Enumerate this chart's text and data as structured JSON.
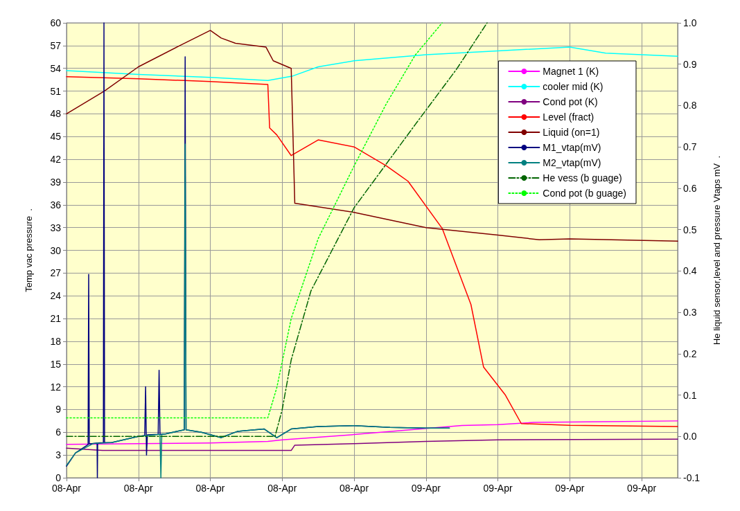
{
  "chart_data": {
    "type": "line",
    "ylabel": "Temp vac pressure  .",
    "y2label": "He liquid sensor,level and pressure Vtaps mV  .",
    "xlim": [
      "--04-08T04:00",
      "--04-09T14:00"
    ],
    "xticks": [
      {
        "value": "--04-08T04:00",
        "label": "08-Apr"
      },
      {
        "value": "--04-08T08:00",
        "label": "08-Apr"
      },
      {
        "value": "--04-08T12:00",
        "label": "08-Apr"
      },
      {
        "value": "--04-08T16:00",
        "label": "08-Apr"
      },
      {
        "value": "--04-08T20:00",
        "label": "08-Apr"
      },
      {
        "value": "--04-09T00:00",
        "label": "09-Apr"
      },
      {
        "value": "--04-09T04:00",
        "label": "09-Apr"
      },
      {
        "value": "--04-09T08:00",
        "label": "09-Apr"
      },
      {
        "value": "--04-09T12:00",
        "label": "09-Apr"
      }
    ],
    "ylim": [
      0,
      60
    ],
    "yticks": [
      0,
      3,
      6,
      9,
      12,
      15,
      18,
      21,
      24,
      27,
      30,
      33,
      36,
      39,
      42,
      45,
      48,
      51,
      54,
      57,
      60
    ],
    "y2lim": [
      -0.1,
      1.0
    ],
    "y2ticks": [
      -0.1,
      {
        "value": 0,
        "label": "0.0"
      },
      0.1,
      0.2,
      0.3,
      0.4,
      0.5,
      0.6,
      0.7,
      0.8,
      0.9,
      {
        "value": 1,
        "label": "1.0"
      }
    ],
    "grid": true,
    "legend": "top right",
    "marker": "none",
    "series": [
      {
        "name": "Magnet 1 (K)",
        "color": "#ff00ff",
        "line_style": "solid",
        "x": [
          "--04-08T04:00",
          "--04-08T08:00",
          "--04-08T12:00",
          "--04-08T15:12",
          "--04-08T16:00",
          "--04-08T20:00",
          "--04-09T02:00",
          "--04-09T04:00",
          "--04-09T06:00",
          "--04-09T10:00",
          "--04-09T14:00"
        ],
        "values": [
          4.4,
          4.5,
          4.6,
          4.8,
          5.0,
          5.7,
          6.9,
          7.0,
          7.3,
          7.4,
          7.5
        ]
      },
      {
        "name": "cooler mid (K)",
        "color": "#00ffff",
        "line_style": "solid",
        "x": [
          "--04-08T04:00",
          "--04-08T08:00",
          "--04-08T12:00",
          "--04-08T15:12",
          "--04-08T16:36",
          "--04-08T18:00",
          "--04-08T20:00",
          "--04-09T00:00",
          "--04-09T04:00",
          "--04-09T08:00",
          "--04-09T10:00",
          "--04-09T14:00"
        ],
        "values": [
          53.7,
          53.2,
          52.8,
          52.4,
          53.0,
          54.2,
          55.0,
          55.8,
          56.3,
          56.8,
          56.0,
          55.6
        ]
      },
      {
        "name": "Cond pot (K)",
        "color": "#800080",
        "line_style": "solid",
        "x": [
          "--04-08T04:00",
          "--04-08T06:00",
          "--04-08T16:30",
          "--04-08T16:42",
          "--04-08T20:00",
          "--04-09T00:00",
          "--04-09T04:00",
          "--04-09T14:00"
        ],
        "values": [
          3.9,
          3.6,
          3.6,
          4.3,
          4.5,
          4.8,
          5.0,
          5.1
        ]
      },
      {
        "name": "Level (fract)",
        "color": "#ff0000",
        "line_style": "solid",
        "axis": "y2",
        "x": [
          "--04-08T04:00",
          "--04-08T08:00",
          "--04-08T12:00",
          "--04-08T15:12",
          "--04-08T15:18",
          "--04-08T15:42",
          "--04-08T16:30",
          "--04-08T18:00",
          "--04-08T20:00",
          "--04-08T21:48",
          "--04-08T23:00",
          "--04-09T00:54",
          "--04-09T02:30",
          "--04-09T03:12",
          "--04-09T04:24",
          "--04-09T05:18",
          "--04-09T08:00",
          "--04-09T14:00"
        ],
        "values": [
          0.87,
          0.865,
          0.858,
          0.851,
          0.746,
          0.729,
          0.679,
          0.717,
          0.7,
          0.654,
          0.617,
          0.503,
          0.319,
          0.168,
          0.101,
          0.031,
          0.027,
          0.024
        ]
      },
      {
        "name": "Liquid (on=1)",
        "color": "#800000",
        "line_style": "solid",
        "x": [
          "--04-08T04:00",
          "--04-08T06:06",
          "--04-08T08:00",
          "--04-08T10:18",
          "--04-08T12:00",
          "--04-08T12:36",
          "--04-08T13:24",
          "--04-08T15:06",
          "--04-08T15:30",
          "--04-08T16:30",
          "--04-08T16:42",
          "--04-08T20:00",
          "--04-09T00:00",
          "--04-09T04:00",
          "--04-09T06:18",
          "--04-09T08:00",
          "--04-09T14:00"
        ],
        "values": [
          48,
          51,
          54.2,
          57,
          59,
          58,
          57.3,
          56.8,
          55,
          54,
          36.2,
          35,
          33,
          32,
          31.4,
          31.5,
          31.2
        ]
      },
      {
        "name": "M1_vtap(mV)",
        "color": "#000080",
        "line_style": "solid",
        "axis": "y2",
        "x": [
          "--04-08T04:00",
          "--04-08T04:30",
          "--04-08T05:12",
          "--04-08T05:14",
          "--04-08T05:16",
          "--04-08T05:30",
          "--04-08T05:42",
          "--04-08T05:43",
          "--04-08T05:44",
          "--04-08T06:03",
          "--04-08T06:05",
          "--04-08T06:07",
          "--04-08T06:30",
          "--04-08T08:00",
          "--04-08T08:21",
          "--04-08T08:24",
          "--04-08T08:27",
          "--04-08T08:30",
          "--04-08T09:06",
          "--04-08T09:09",
          "--04-08T09:12",
          "--04-08T09:30",
          "--04-08T10:33",
          "--04-08T10:36",
          "--04-08T10:39",
          "--04-08T11:30",
          "--04-08T12:36",
          "--04-08T13:30",
          "--04-08T15:00",
          "--04-08T15:42",
          "--04-08T16:30",
          "--04-08T18:00",
          "--04-08T20:00",
          "--04-08T22:00",
          "--04-09T00:00",
          "--04-09T01:18"
        ],
        "values": [
          -0.072,
          -0.04,
          -0.02,
          0.392,
          -0.018,
          -0.017,
          -0.016,
          -0.1,
          -0.016,
          -0.015,
          1.0,
          -0.015,
          -0.015,
          0.0,
          0.002,
          0.12,
          -0.045,
          0.004,
          0.005,
          0.16,
          0.005,
          0.006,
          0.016,
          0.918,
          0.016,
          0.01,
          -0.003,
          0.012,
          0.018,
          -0.003,
          0.018,
          0.024,
          0.026,
          0.022,
          0.02,
          0.02
        ]
      },
      {
        "name": "M2_vtap(mV)",
        "color": "#008080",
        "line_style": "solid",
        "axis": "y2",
        "x": [
          "--04-08T04:00",
          "--04-08T04:30",
          "--04-08T05:30",
          "--04-08T06:30",
          "--04-08T08:00",
          "--04-08T09:12",
          "--04-08T09:15",
          "--04-08T09:18",
          "--04-08T09:30",
          "--04-08T10:33",
          "--04-08T10:36",
          "--04-08T10:39",
          "--04-08T11:30",
          "--04-08T12:36",
          "--04-08T13:30",
          "--04-08T15:00",
          "--04-08T15:42",
          "--04-08T16:30",
          "--04-08T18:00",
          "--04-08T20:00",
          "--04-08T22:00",
          "--04-09T00:00",
          "--04-09T01:18"
        ],
        "values": [
          -0.07,
          -0.04,
          -0.017,
          -0.015,
          0.0,
          0.005,
          -0.1,
          0.005,
          0.006,
          0.016,
          0.707,
          0.016,
          0.01,
          -0.003,
          0.012,
          0.018,
          -0.003,
          0.018,
          0.024,
          0.026,
          0.022,
          0.02,
          0.02
        ]
      },
      {
        "name": "He vess (b guage)",
        "color": "#006400",
        "line_style": "dashed",
        "axis": "y2",
        "x": [
          "--04-08T04:00",
          "--04-08T15:36",
          "--04-08T16:00",
          "--04-08T16:30",
          "--04-08T17:36",
          "--04-08T20:00",
          "--04-08T23:24",
          "--04-09T01:42",
          "--04-09T03:24"
        ],
        "values": [
          0.0,
          0.0,
          0.065,
          0.185,
          0.352,
          0.553,
          0.754,
          0.888,
          1.0
        ]
      },
      {
        "name": "Cond pot (b guage)",
        "color": "#00ff00",
        "line_style": "dotted",
        "axis": "y2",
        "x": [
          "--04-08T04:00",
          "--04-08T15:12",
          "--04-08T15:42",
          "--04-08T16:30",
          "--04-08T18:00",
          "--04-08T20:00",
          "--04-08T21:48",
          "--04-08T23:24",
          "--04-09T00:54"
        ],
        "values": [
          0.045,
          0.045,
          0.118,
          0.285,
          0.478,
          0.654,
          0.805,
          0.922,
          1.0
        ]
      }
    ]
  }
}
